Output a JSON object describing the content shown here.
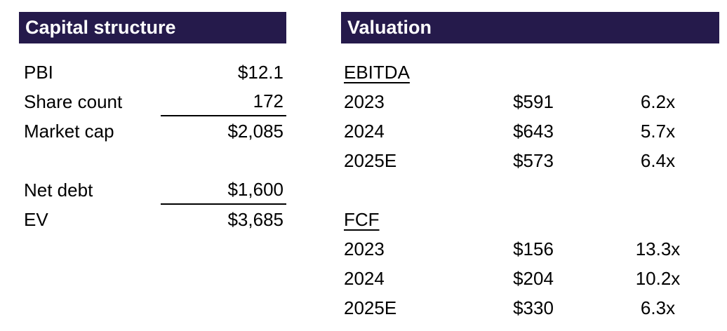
{
  "theme": {
    "header_bg": "#251a4b",
    "header_text": "#ffffff",
    "body_text": "#000000"
  },
  "capital_structure": {
    "title": "Capital structure",
    "rows": [
      {
        "label": "PBI",
        "value": "$12.1"
      },
      {
        "label": "Share count",
        "value": "172"
      },
      {
        "label": "Market cap",
        "value": "$2,085"
      },
      {
        "label": "Net debt",
        "value": "$1,600"
      },
      {
        "label": "EV",
        "value": "$3,685"
      }
    ]
  },
  "valuation": {
    "title": "Valuation",
    "ebitda": {
      "heading": "EBITDA",
      "rows": [
        {
          "year": "2023",
          "value": "$591",
          "multiple": "6.2x"
        },
        {
          "year": "2024",
          "value": "$643",
          "multiple": "5.7x"
        },
        {
          "year": "2025E",
          "value": "$573",
          "multiple": "6.4x"
        }
      ]
    },
    "fcf": {
      "heading": "FCF",
      "rows": [
        {
          "year": "2023",
          "value": "$156",
          "multiple": "13.3x"
        },
        {
          "year": "2024",
          "value": "$204",
          "multiple": "10.2x"
        },
        {
          "year": "2025E",
          "value": "$330",
          "multiple": "6.3x"
        }
      ]
    }
  }
}
